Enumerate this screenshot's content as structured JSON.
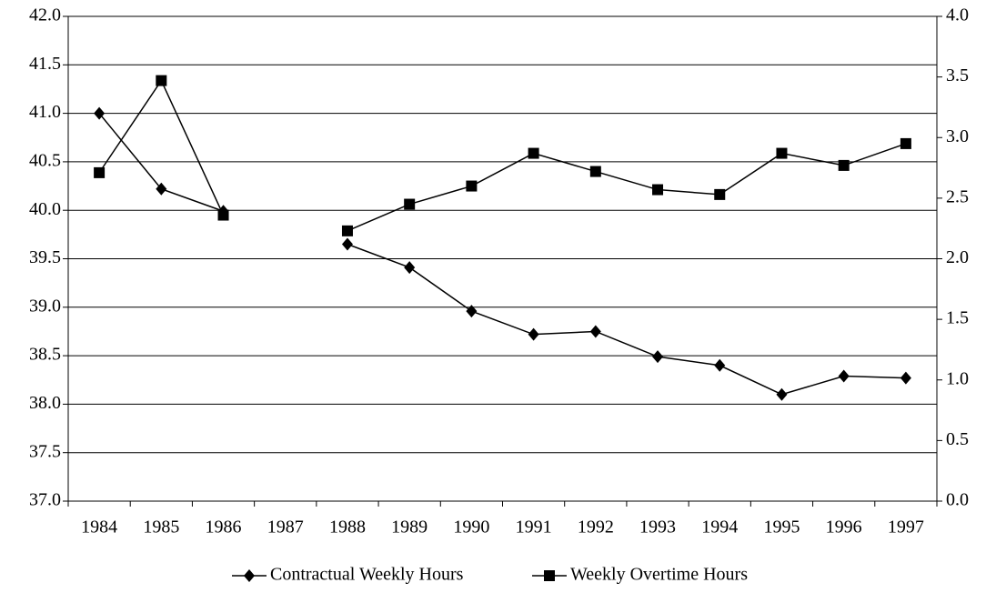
{
  "chart_data": {
    "type": "line",
    "categories": [
      "1984",
      "1985",
      "1986",
      "1987",
      "1988",
      "1989",
      "1990",
      "1991",
      "1992",
      "1993",
      "1994",
      "1995",
      "1996",
      "1997"
    ],
    "series": [
      {
        "name": "Contractual Weekly Hours",
        "color": "#000000",
        "marker": "diamond",
        "axis": "y",
        "values": [
          41.0,
          40.22,
          39.99,
          null,
          39.65,
          39.41,
          38.96,
          38.72,
          38.75,
          38.49,
          38.4,
          38.1,
          38.29,
          38.27
        ]
      },
      {
        "name": "Weekly Overtime Hours",
        "color": "#000000",
        "marker": "square",
        "axis": "y2",
        "values": [
          2.71,
          3.47,
          2.36,
          null,
          2.23,
          2.45,
          2.6,
          2.87,
          2.72,
          2.57,
          2.53,
          2.87,
          2.77,
          2.95
        ]
      }
    ],
    "ylim": [
      37,
      42
    ],
    "yticks": [
      {
        "value": 37,
        "label": "37.0"
      },
      {
        "value": 37.5,
        "label": "37.5"
      },
      {
        "value": 38,
        "label": "38.0"
      },
      {
        "value": 38.5,
        "label": "38.5"
      },
      {
        "value": 39,
        "label": "39.0"
      },
      {
        "value": 39.5,
        "label": "39.5"
      },
      {
        "value": 40,
        "label": "40.0"
      },
      {
        "value": 40.5,
        "label": "40.5"
      },
      {
        "value": 41,
        "label": "41.0"
      },
      {
        "value": 41.5,
        "label": "41.5"
      },
      {
        "value": 42,
        "label": "42.0"
      }
    ],
    "y2lim": [
      0,
      4
    ],
    "y2ticks": [
      {
        "value": 0,
        "label": "0.0"
      },
      {
        "value": 0.5,
        "label": "0.5"
      },
      {
        "value": 1,
        "label": "1.0"
      },
      {
        "value": 1.5,
        "label": "1.5"
      },
      {
        "value": 2,
        "label": "2.0"
      },
      {
        "value": 2.5,
        "label": "2.5"
      },
      {
        "value": 3,
        "label": "3.0"
      },
      {
        "value": 3.5,
        "label": "3.5"
      },
      {
        "value": 4,
        "label": "4.0"
      }
    ],
    "grid": true,
    "legend": "bottom"
  }
}
